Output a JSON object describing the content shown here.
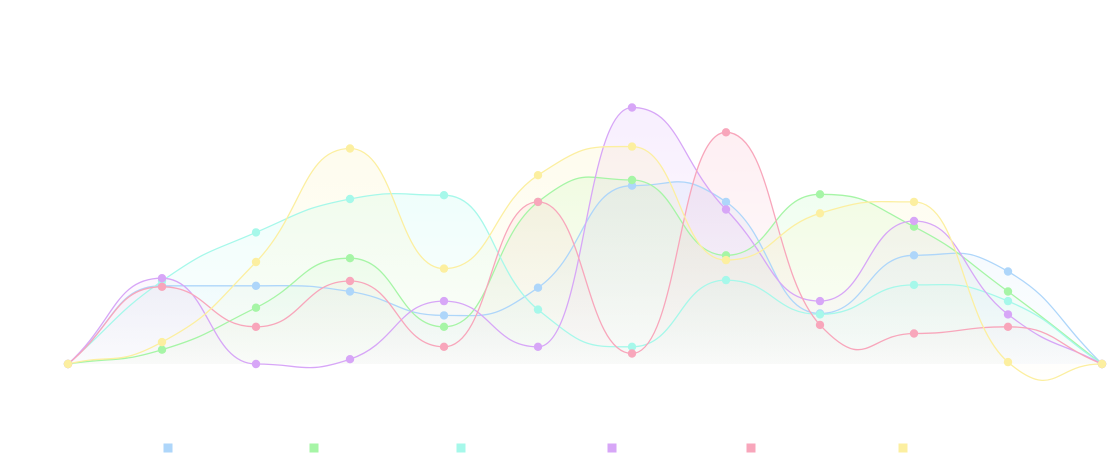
{
  "chart_data": {
    "type": "area",
    "title": "",
    "xlabel": "",
    "ylabel": "",
    "x": [
      0,
      1,
      2,
      3,
      4,
      5,
      6,
      7,
      8,
      9,
      10,
      11
    ],
    "ylim": [
      0,
      280
    ],
    "grid": false,
    "axes_visible": false,
    "smooth": true,
    "legend_placement": "bottom",
    "series": [
      {
        "color": "#aed6fa",
        "values": [
          0,
          82,
          82,
          76,
          51,
          80,
          187,
          170,
          53,
          114,
          97,
          0
        ]
      },
      {
        "color": "#a6f5a6",
        "values": [
          0,
          15,
          59,
          111,
          39,
          170,
          193,
          114,
          178,
          144,
          76,
          0
        ]
      },
      {
        "color": "#a6f8ea",
        "values": [
          0,
          87,
          138,
          173,
          177,
          57,
          18,
          88,
          52,
          83,
          66,
          0
        ]
      },
      {
        "color": "#d7a6f7",
        "values": [
          0,
          90,
          0,
          5,
          66,
          18,
          269,
          162,
          66,
          150,
          52,
          0
        ]
      },
      {
        "color": "#f8a6bb",
        "values": [
          0,
          81,
          39,
          87,
          18,
          170,
          11,
          243,
          41,
          32,
          39,
          0
        ]
      },
      {
        "color": "#fcefa0",
        "values": [
          0,
          23,
          107,
          226,
          100,
          198,
          228,
          109,
          158,
          170,
          2,
          0
        ]
      }
    ]
  }
}
